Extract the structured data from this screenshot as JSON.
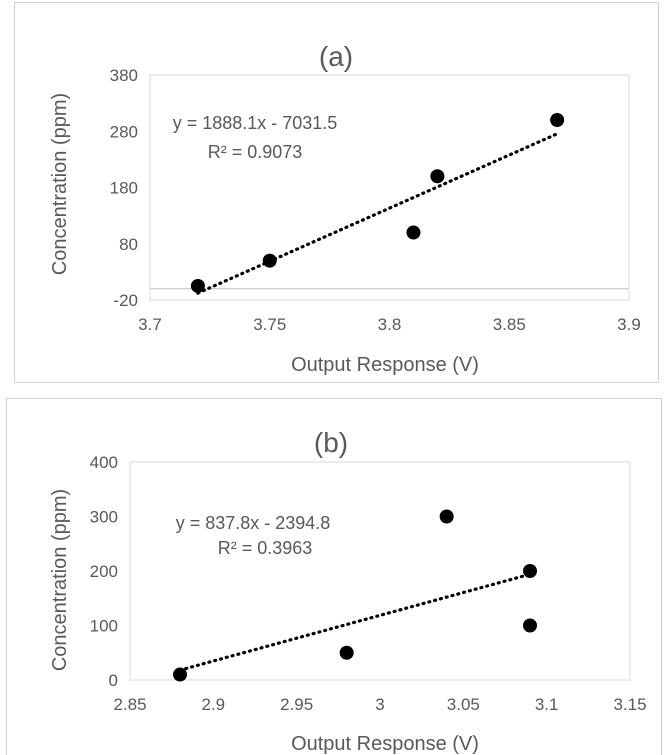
{
  "charts": [
    {
      "id": "a",
      "title": "(a)",
      "equation": "y = 1888.1x - 7031.5",
      "r2": "R² = 0.9073",
      "xlabel": "Output Response (V)",
      "ylabel": "Concentration (ppm)",
      "xticks": [
        "3.7",
        "3.75",
        "3.8",
        "3.85",
        "3.9"
      ],
      "yticks": [
        "380",
        "280",
        "180",
        "80",
        "-20"
      ]
    },
    {
      "id": "b",
      "title": "(b)",
      "equation": "y = 837.8x - 2394.8",
      "r2": "R² = 0.3963",
      "xlabel": "Output Response (V)",
      "ylabel": "Concentration (ppm)",
      "xticks": [
        "2.85",
        "2.9",
        "2.95",
        "3",
        "3.05",
        "3.1",
        "3.15"
      ],
      "yticks": [
        "400",
        "300",
        "200",
        "100",
        "0"
      ]
    }
  ],
  "chart_data": [
    {
      "type": "scatter",
      "title": "(a)",
      "xlabel": "Output Response (V)",
      "ylabel": "Concentration (ppm)",
      "xlim": [
        3.7,
        3.9
      ],
      "ylim": [
        -20,
        380
      ],
      "x": [
        3.72,
        3.75,
        3.81,
        3.82,
        3.87
      ],
      "y": [
        5,
        50,
        100,
        200,
        300
      ],
      "trendline": {
        "type": "linear",
        "slope": 1888.1,
        "intercept": -7031.5,
        "r2": 0.9073,
        "style": "dotted"
      },
      "grid": false,
      "marker_color": "#000000"
    },
    {
      "type": "scatter",
      "title": "(b)",
      "xlabel": "Output Response (V)",
      "ylabel": "Concentration (ppm)",
      "xlim": [
        2.85,
        3.15
      ],
      "ylim": [
        0,
        400
      ],
      "x": [
        2.88,
        2.98,
        3.04,
        3.09,
        3.09
      ],
      "y": [
        10,
        50,
        300,
        200,
        100
      ],
      "trendline": {
        "type": "linear",
        "slope": 837.8,
        "intercept": -2394.8,
        "r2": 0.3963,
        "style": "dotted"
      },
      "grid": false,
      "marker_color": "#000000"
    }
  ]
}
